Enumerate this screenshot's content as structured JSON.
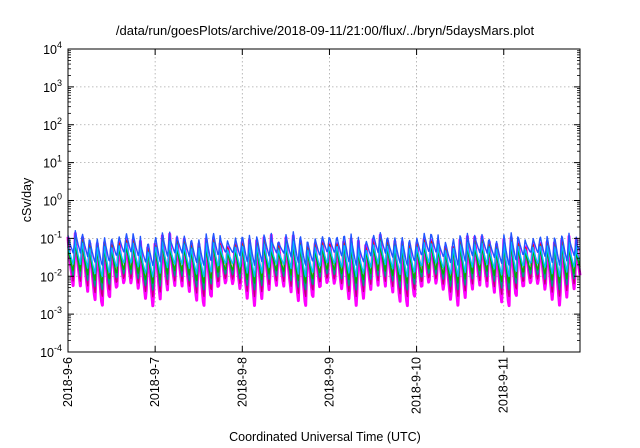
{
  "chart_data": {
    "type": "line",
    "title": "/data/run/goesPlots/archive/2018-09-11/21:00/flux/../bryn/5daysMars.plot",
    "xlabel": "Coordinated Universal Time (UTC)",
    "ylabel": "cSv/day",
    "y_scale": "log",
    "ylim": [
      0.0001,
      10000
    ],
    "y_ticks": [
      {
        "value": 0.0001,
        "base": "10",
        "exp": "-4"
      },
      {
        "value": 0.001,
        "base": "10",
        "exp": "-3"
      },
      {
        "value": 0.01,
        "base": "10",
        "exp": "-2"
      },
      {
        "value": 0.1,
        "base": "10",
        "exp": "-1"
      },
      {
        "value": 1,
        "base": "10",
        "exp": "0"
      },
      {
        "value": 10,
        "base": "10",
        "exp": "1"
      },
      {
        "value": 100,
        "base": "10",
        "exp": "2"
      },
      {
        "value": 1000,
        "base": "10",
        "exp": "3"
      },
      {
        "value": 10000,
        "base": "10",
        "exp": "4"
      }
    ],
    "xlim": [
      "2018-09-06",
      "2018-09-11T21:00"
    ],
    "x_ticks": [
      "2018-9-6",
      "2018-9-7",
      "2018-9-8",
      "2018-9-9",
      "2018-9-10",
      "2018-9-11"
    ],
    "grid": true,
    "legend": "none",
    "approx_cycle_hours": 2,
    "series": [
      {
        "color": "#ff00ff",
        "peak": 0.11,
        "trough": 0.0035,
        "peak_mod": 0.35,
        "trough_mod": 0.6
      },
      {
        "color": "#c0007a",
        "peak": 0.1,
        "trough": 0.005,
        "peak_mod": 0.35,
        "trough_mod": 0.5
      },
      {
        "color": "#ee2000",
        "peak": 0.09,
        "trough": 0.008,
        "peak_mod": 0.35,
        "trough_mod": 0.45
      },
      {
        "color": "#009a8a",
        "peak": 0.08,
        "trough": 0.007,
        "peak_mod": 0.35,
        "trough_mod": 0.45
      },
      {
        "color": "#00b000",
        "peak": 0.06,
        "trough": 0.01,
        "peak_mod": 0.35,
        "trough_mod": 0.4
      },
      {
        "color": "#00bfff",
        "peak": 0.07,
        "trough": 0.015,
        "peak_mod": 0.35,
        "trough_mod": 0.4
      },
      {
        "color": "#2255ff",
        "peak": 0.12,
        "trough": 0.03,
        "peak_mod": 0.4,
        "trough_mod": 0.4
      }
    ]
  }
}
